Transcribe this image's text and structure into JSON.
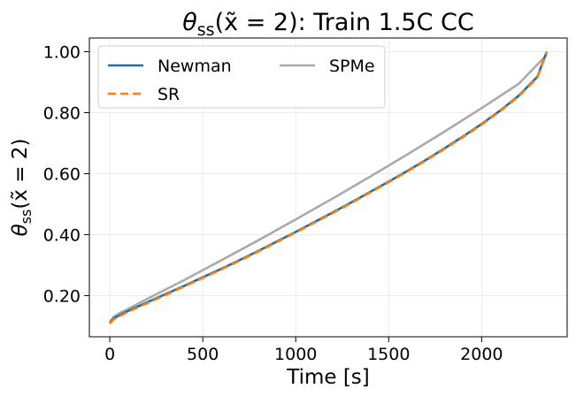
{
  "chart_data": {
    "type": "line",
    "title_math": "θ",
    "title_sub": "ss",
    "title_arg": "(x̃ = 2): Train 1.5C CC",
    "xlabel": "Time [s]",
    "ylabel_math": "θ",
    "ylabel_sub": "ss",
    "ylabel_arg": "(x̃ = 2)",
    "xlim": [
      -110,
      2460
    ],
    "ylim": [
      0.065,
      1.045
    ],
    "xticks": [
      0,
      500,
      1000,
      1500,
      2000
    ],
    "xtick_labels": [
      "0",
      "500",
      "1000",
      "1500",
      "2000"
    ],
    "yticks": [
      0.2,
      0.4,
      0.6,
      0.8,
      1.0
    ],
    "ytick_labels": [
      "0.20",
      "0.40",
      "0.60",
      "0.80",
      "1.00"
    ],
    "grid": true,
    "legend_placement": "top-left",
    "series": [
      {
        "name": "Newman",
        "color": "#1f6fa8",
        "dash": "solid",
        "x": [
          0,
          20,
          50,
          100,
          200,
          300,
          400,
          500,
          600,
          700,
          800,
          900,
          1000,
          1100,
          1200,
          1300,
          1400,
          1500,
          1600,
          1700,
          1800,
          1900,
          2000,
          2100,
          2200,
          2300,
          2350
        ],
        "y": [
          0.11,
          0.125,
          0.135,
          0.15,
          0.178,
          0.205,
          0.232,
          0.26,
          0.288,
          0.317,
          0.347,
          0.378,
          0.409,
          0.441,
          0.473,
          0.506,
          0.54,
          0.574,
          0.609,
          0.645,
          0.683,
          0.722,
          0.763,
          0.807,
          0.856,
          0.918,
          1.0
        ]
      },
      {
        "name": "SR",
        "color": "#ff7f0e",
        "dash": "dashed",
        "x": [
          0,
          20,
          50,
          100,
          200,
          300,
          400,
          500,
          600,
          700,
          800,
          900,
          1000,
          1100,
          1200,
          1300,
          1400,
          1500,
          1600,
          1700,
          1800,
          1900,
          2000,
          2100,
          2200,
          2300,
          2350
        ],
        "y": [
          0.108,
          0.122,
          0.132,
          0.147,
          0.175,
          0.202,
          0.23,
          0.258,
          0.286,
          0.315,
          0.345,
          0.376,
          0.407,
          0.439,
          0.471,
          0.504,
          0.538,
          0.572,
          0.607,
          0.643,
          0.681,
          0.72,
          0.761,
          0.805,
          0.854,
          0.915,
          0.998
        ]
      },
      {
        "name": "SPMe",
        "color": "#aaaaaa",
        "dash": "solid",
        "x": [
          0,
          20,
          50,
          100,
          200,
          400,
          600,
          800,
          1000,
          1200,
          1400,
          1600,
          1800,
          2000,
          2200,
          2350
        ],
        "y": [
          0.113,
          0.13,
          0.142,
          0.157,
          0.189,
          0.251,
          0.316,
          0.382,
          0.45,
          0.519,
          0.59,
          0.663,
          0.738,
          0.815,
          0.895,
          0.99
        ]
      }
    ]
  }
}
